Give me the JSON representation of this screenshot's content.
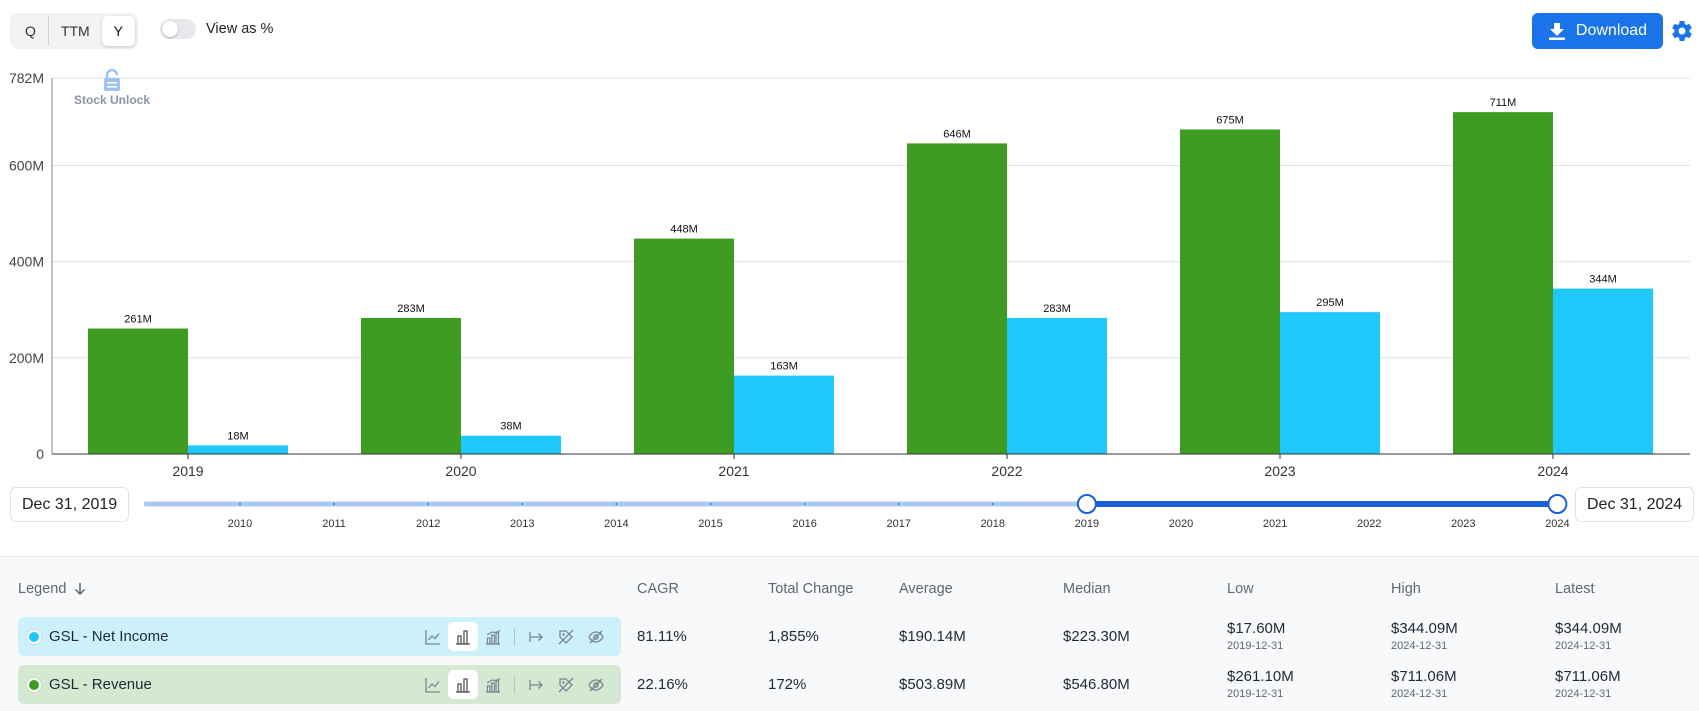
{
  "toolbar": {
    "periods": [
      {
        "label": "Q",
        "active": false
      },
      {
        "label": "TTM",
        "active": false
      },
      {
        "label": "Y",
        "active": true
      }
    ],
    "view_as_percent_label": "View as %",
    "download_label": "Download"
  },
  "watermark": "Stock Unlock",
  "colors": {
    "revenue": "#3f9c22",
    "net_income": "#1ec8fb",
    "accent": "#1a73e8",
    "revenue_row_bg": "#d5e9d2",
    "net_income_row_bg": "#cdf1fb"
  },
  "chart_data": {
    "type": "bar",
    "categories": [
      "2019",
      "2020",
      "2021",
      "2022",
      "2023",
      "2024"
    ],
    "series": [
      {
        "name": "GSL - Revenue",
        "values": [
          261,
          283,
          448,
          646,
          675,
          711
        ],
        "labels": [
          "261M",
          "283M",
          "448M",
          "646M",
          "675M",
          "711M"
        ]
      },
      {
        "name": "GSL - Net Income",
        "values": [
          18,
          38,
          163,
          283,
          295,
          344
        ],
        "labels": [
          "18M",
          "38M",
          "163M",
          "283M",
          "295M",
          "344M"
        ]
      }
    ],
    "unit": "M",
    "ylim": [
      0,
      782
    ],
    "y_ticks": [
      0,
      200,
      400,
      600,
      782
    ],
    "y_tick_labels": [
      "0",
      "200M",
      "400M",
      "600M",
      "782M"
    ],
    "grid": true
  },
  "range": {
    "start_label": "Dec 31, 2019",
    "end_label": "Dec 31, 2024",
    "years": [
      "2010",
      "2011",
      "2012",
      "2013",
      "2014",
      "2015",
      "2016",
      "2017",
      "2018",
      "2019",
      "2020",
      "2021",
      "2022",
      "2023",
      "2024"
    ],
    "selected_start": "2019",
    "selected_end": "2024"
  },
  "stats": {
    "legend_header": "Legend",
    "headers": {
      "cagr": "CAGR",
      "total_change": "Total Change",
      "average": "Average",
      "median": "Median",
      "low": "Low",
      "high": "High",
      "latest": "Latest"
    },
    "rows": [
      {
        "name": "GSL - Net Income",
        "cagr": "81.11%",
        "total_change": "1,855%",
        "average": "$190.14M",
        "median": "$223.30M",
        "low": "$17.60M",
        "low_date": "2019-12-31",
        "high": "$344.09M",
        "high_date": "2024-12-31",
        "latest": "$344.09M",
        "latest_date": "2024-12-31"
      },
      {
        "name": "GSL - Revenue",
        "cagr": "22.16%",
        "total_change": "172%",
        "average": "$503.89M",
        "median": "$546.80M",
        "low": "$261.10M",
        "low_date": "2019-12-31",
        "high": "$711.06M",
        "high_date": "2024-12-31",
        "latest": "$711.06M",
        "latest_date": "2024-12-31"
      }
    ]
  }
}
